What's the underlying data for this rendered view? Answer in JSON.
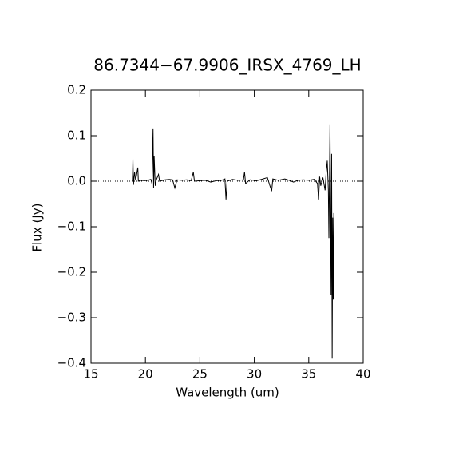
{
  "chart_data": {
    "type": "line",
    "title": "86.7344−67.9906_IRSX_4769_LH",
    "x_label": "Wavelength (um)",
    "y_label": "Flux (Jy)",
    "xlim": [
      15,
      40
    ],
    "ylim": [
      -0.4,
      0.2
    ],
    "xticks": [
      15,
      20,
      25,
      30,
      35,
      40
    ],
    "yticks": [
      {
        "value": -0.4,
        "label": "−0.4"
      },
      {
        "value": -0.3,
        "label": "−0.3"
      },
      {
        "value": -0.2,
        "label": "−0.2"
      },
      {
        "value": -0.1,
        "label": "−0.1"
      },
      {
        "value": 0,
        "label": "0.0"
      },
      0.1,
      0.2
    ],
    "zero_line": true,
    "color": "#000000",
    "x": [
      18.8,
      18.85,
      18.9,
      19.0,
      19.1,
      19.3,
      19.35,
      19.6,
      19.9,
      20.2,
      20.5,
      20.6,
      20.7,
      20.75,
      20.8,
      20.9,
      21.0,
      21.2,
      21.3,
      21.8,
      22.2,
      22.5,
      22.7,
      22.9,
      23.3,
      23.8,
      24.2,
      24.4,
      24.5,
      25.0,
      25.5,
      26.0,
      26.5,
      27.0,
      27.3,
      27.4,
      27.5,
      28.0,
      28.5,
      29.0,
      29.1,
      29.2,
      29.6,
      30.2,
      30.8,
      31.2,
      31.5,
      31.6,
      31.7,
      32.2,
      32.8,
      33.2,
      33.6,
      34.0,
      34.5,
      35.0,
      35.5,
      35.8,
      35.9,
      36.0,
      36.1,
      36.3,
      36.5,
      36.6,
      36.7,
      36.8,
      36.85,
      36.95,
      37.05,
      37.1,
      37.15,
      37.2,
      37.25,
      37.3
    ],
    "values": [
      0,
      0.049,
      -0.008,
      0.02,
      0.002,
      0.03,
      0,
      0.002,
      0.001,
      0.002,
      0.004,
      -0.005,
      0.116,
      -0.015,
      0.055,
      -0.01,
      0.003,
      0.015,
      0,
      0.003,
      0.004,
      0.003,
      -0.015,
      0.003,
      0.002,
      0.003,
      0.001,
      0.02,
      0,
      0.001,
      0.002,
      -0.002,
      0.001,
      0.002,
      0.005,
      -0.04,
      0,
      0.004,
      0.002,
      0.003,
      0.02,
      -0.005,
      0.003,
      0.001,
      0.005,
      0.008,
      -0.015,
      -0.02,
      0.005,
      0.002,
      0.005,
      0.002,
      -0.002,
      0.002,
      0.003,
      0.002,
      0.004,
      -0.005,
      -0.04,
      0.01,
      -0.01,
      0.008,
      -0.02,
      0.02,
      0.045,
      -0.02,
      -0.125,
      0.125,
      -0.25,
      0.06,
      -0.39,
      -0.08,
      -0.26,
      -0.07
    ]
  }
}
